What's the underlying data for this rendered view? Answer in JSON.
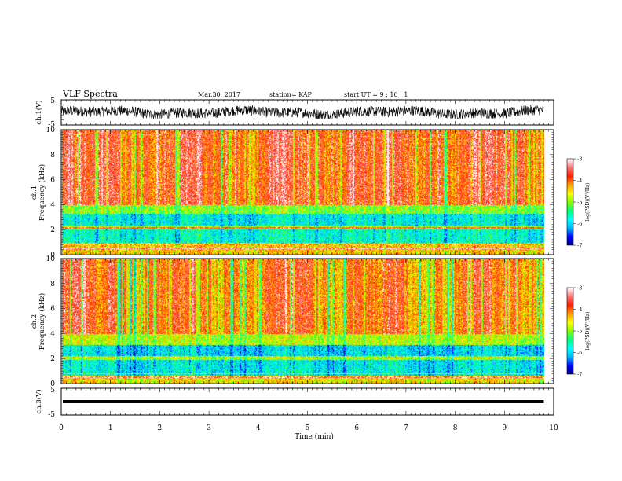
{
  "header": {
    "title": "VLF Spectra",
    "date": "Mar.30, 2017",
    "station": "station= KAP",
    "start": "start  UT =  9 : 10 : 1"
  },
  "chart_data": [
    {
      "id": "ch1-waveform",
      "type": "line",
      "ylabel": "ch.1(V)",
      "ylim": [
        -5,
        5
      ],
      "yticks": [
        "5",
        "-5"
      ],
      "xlim": [
        0,
        10
      ],
      "description_values": "broadband noisy waveform oscillating roughly between -2 V and +3 V over 0 to 9.8 min",
      "series": [
        {
          "values_range": [
            -2.5,
            3
          ]
        }
      ]
    },
    {
      "id": "ch1-spectrogram",
      "type": "heatmap",
      "ylabel_line1": "ch.1",
      "ylabel_line2": "Frequency (kHz)",
      "ylim": [
        0,
        10
      ],
      "yticks": [
        "0",
        "2",
        "4",
        "6",
        "8",
        "10"
      ],
      "xlim": [
        0,
        10
      ],
      "data_xmax": 9.8,
      "colorbar": {
        "label": "log(PSD)(V²/Hz)",
        "range": [
          -7,
          -3
        ],
        "ticks": [
          "-3",
          "-4",
          "-5",
          "-6",
          "-7"
        ]
      },
      "bands_log_psd": [
        {
          "f": [
            0,
            0.9
          ],
          "level": -4.4
        },
        {
          "f": [
            0.9,
            2.0
          ],
          "level": -5.7
        },
        {
          "f": [
            2.0,
            2.3
          ],
          "level": -4.8
        },
        {
          "f": [
            2.3,
            3.3
          ],
          "level": -5.8
        },
        {
          "f": [
            3.3,
            4.0
          ],
          "level": -5.0
        },
        {
          "f": [
            4.0,
            10.0
          ],
          "level": -3.8
        }
      ]
    },
    {
      "id": "ch2-spectrogram",
      "type": "heatmap",
      "ylabel_line1": "ch.2",
      "ylabel_line2": "Frequency (kHz)",
      "ylim": [
        0,
        10
      ],
      "yticks": [
        "0",
        "2",
        "4",
        "6",
        "8",
        "10"
      ],
      "xlim": [
        0,
        10
      ],
      "data_xmax": 9.8,
      "colorbar": {
        "label": "log(PSD)(V²/Hz)",
        "range": [
          -7,
          -3
        ],
        "ticks": [
          "-3",
          "-4",
          "-5",
          "-6",
          "-7"
        ]
      },
      "bands_log_psd": [
        {
          "f": [
            0,
            0.6
          ],
          "level": -4.5
        },
        {
          "f": [
            0.6,
            1.9
          ],
          "level": -5.8
        },
        {
          "f": [
            1.9,
            2.1
          ],
          "level": -4.9
        },
        {
          "f": [
            2.1,
            3.1
          ],
          "level": -5.9
        },
        {
          "f": [
            3.1,
            4.0
          ],
          "level": -4.8
        },
        {
          "f": [
            4.0,
            10.0
          ],
          "level": -4.0
        }
      ]
    },
    {
      "id": "ch3-waveform",
      "type": "line",
      "ylabel": "ch.3(V)",
      "ylim": [
        -5,
        5
      ],
      "yticks": [
        "5",
        "-5"
      ],
      "xlim": [
        0,
        10
      ],
      "series": [
        {
          "constant_value": 0
        }
      ]
    }
  ],
  "xaxis": {
    "label": "Time (min)",
    "ticks": [
      "0",
      "1",
      "2",
      "3",
      "4",
      "5",
      "6",
      "7",
      "8",
      "9",
      "10"
    ]
  },
  "colors": {
    "scale": [
      "#00007a",
      "#0000ff",
      "#00b4ff",
      "#00ffff",
      "#00ff80",
      "#80ff00",
      "#ffff00",
      "#ffa000",
      "#ff2000",
      "#ff7070",
      "#ffffff"
    ]
  }
}
